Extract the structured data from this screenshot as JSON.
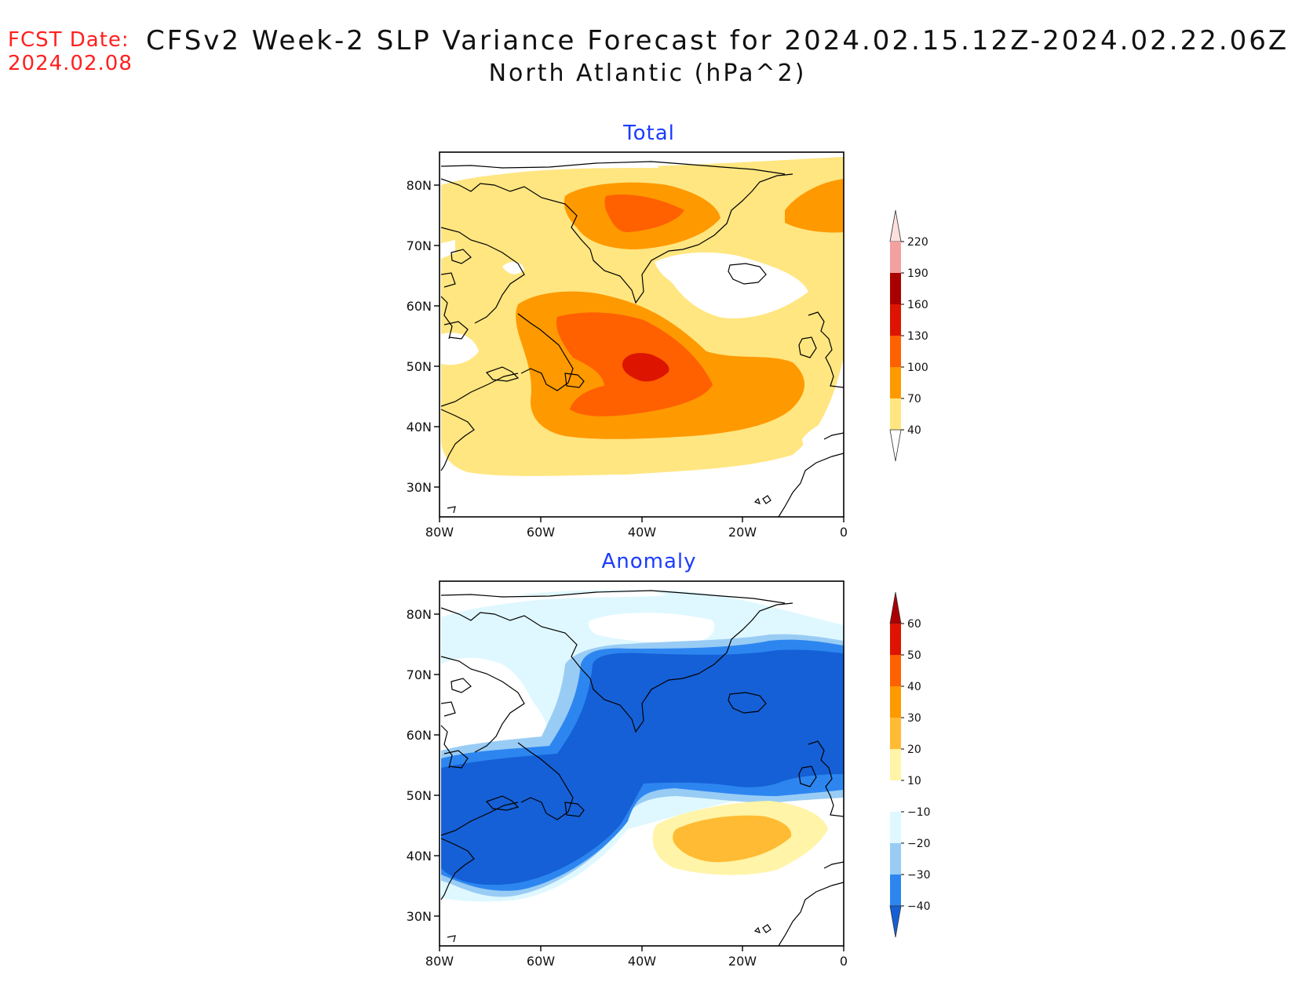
{
  "header": {
    "fcst_label": "FCST Date:",
    "fcst_date": "2024.02.08",
    "title": "CFSv2 Week-2 SLP Variance Forecast for 2024.02.15.12Z-2024.02.22.06Z",
    "subtitle": "North Atlantic (hPa^2)"
  },
  "colors": {
    "fcst": "#ff2020",
    "panel_title": "#1a3cff",
    "coast": "#000000"
  },
  "panels": [
    {
      "id": "total",
      "title": "Total",
      "lat_ticks": [
        "80N",
        "70N",
        "60N",
        "50N",
        "40N",
        "30N"
      ],
      "lon_ticks": [
        "80W",
        "60W",
        "40W",
        "20W",
        "0"
      ],
      "colorbar": {
        "labels": [
          "220",
          "190",
          "160",
          "130",
          "100",
          "70",
          "40"
        ],
        "colors": [
          "#fde0dd",
          "#f4a0a0",
          "#aa0000",
          "#dd1400",
          "#ff6000",
          "#ff9900",
          "#ffe680"
        ]
      }
    },
    {
      "id": "anomaly",
      "title": "Anomaly",
      "lat_ticks": [
        "80N",
        "70N",
        "60N",
        "50N",
        "40N",
        "30N"
      ],
      "lon_ticks": [
        "80W",
        "60W",
        "40W",
        "20W",
        "0"
      ],
      "colorbar": {
        "labels": [
          "60",
          "50",
          "40",
          "30",
          "20",
          "10",
          "−10",
          "−20",
          "−30",
          "−40"
        ],
        "colors": [
          "#aa0000",
          "#dd1400",
          "#ff6000",
          "#ff9900",
          "#ffbb33",
          "#fff4a8",
          "#ffffff",
          "#dff8ff",
          "#99ccf5",
          "#2d86f0",
          "#1560d6"
        ]
      }
    }
  ]
}
